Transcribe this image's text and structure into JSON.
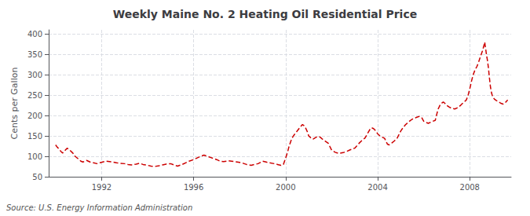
{
  "chart_data": {
    "type": "line",
    "title": "Weekly Maine No. 2 Heating Oil Residential Price",
    "ylabel": "Cents per Gallon",
    "annotations": [
      "Source: U.S. Energy Information Administration"
    ],
    "color": "#CC0000",
    "line_style": "dashed",
    "grid": true,
    "xlim": [
      1989.7,
      2009.8
    ],
    "xticks": [
      1992,
      1996,
      2000,
      2004,
      2008
    ],
    "ylim": [
      50,
      410
    ],
    "yticks": [
      50,
      100,
      150,
      200,
      250,
      300,
      350,
      400
    ],
    "x": [
      1990.0,
      1990.08,
      1990.15,
      1990.23,
      1990.31,
      1990.5,
      1990.62,
      1990.75,
      1990.85,
      1991.0,
      1991.1,
      1991.19,
      1991.35,
      1991.5,
      1991.65,
      1991.8,
      1991.92,
      1992.05,
      1992.2,
      1992.35,
      1992.5,
      1992.65,
      1992.8,
      1993.0,
      1993.15,
      1993.3,
      1993.5,
      1993.65,
      1993.8,
      1994.0,
      1994.15,
      1994.3,
      1994.5,
      1994.65,
      1994.8,
      1995.0,
      1995.15,
      1995.3,
      1995.5,
      1995.65,
      1995.8,
      1996.0,
      1996.15,
      1996.3,
      1996.45,
      1996.6,
      1996.75,
      1997.0,
      1997.15,
      1997.3,
      1997.5,
      1997.65,
      1997.8,
      1998.0,
      1998.15,
      1998.3,
      1998.5,
      1998.65,
      1998.8,
      1999.0,
      1999.15,
      1999.3,
      1999.5,
      1999.65,
      1999.8,
      1999.9,
      2000.0,
      2000.08,
      2000.15,
      2000.23,
      2000.31,
      2000.4,
      2000.5,
      2000.58,
      2000.65,
      2000.73,
      2000.8,
      2000.88,
      2000.96,
      2001.0,
      2001.1,
      2001.19,
      2001.3,
      2001.4,
      2001.5,
      2001.6,
      2001.7,
      2001.85,
      2002.0,
      2002.15,
      2002.3,
      2002.5,
      2002.65,
      2002.8,
      2003.0,
      2003.1,
      2003.19,
      2003.3,
      2003.45,
      2003.58,
      2003.65,
      2003.73,
      2003.82,
      2003.92,
      2004.0,
      2004.1,
      2004.2,
      2004.3,
      2004.42,
      2004.5,
      2004.62,
      2004.73,
      2004.85,
      2005.0,
      2005.1,
      2005.2,
      2005.3,
      2005.4,
      2005.5,
      2005.6,
      2005.7,
      2005.82,
      2005.92,
      2006.0,
      2006.1,
      2006.2,
      2006.35,
      2006.5,
      2006.62,
      2006.73,
      2006.85,
      2006.92,
      2007.0,
      2007.1,
      2007.2,
      2007.35,
      2007.5,
      2007.62,
      2007.73,
      2007.85,
      2007.92,
      2008.0,
      2008.08,
      2008.15,
      2008.23,
      2008.31,
      2008.38,
      2008.44,
      2008.5,
      2008.55,
      2008.6,
      2008.63,
      2008.65,
      2008.67,
      2008.7,
      2008.73,
      2008.77,
      2008.81,
      2008.85,
      2008.9,
      2008.95,
      2009.0,
      2009.08,
      2009.15,
      2009.25,
      2009.35,
      2009.45,
      2009.55,
      2009.65
    ],
    "values": [
      128,
      122,
      118,
      112,
      108,
      120,
      115,
      108,
      100,
      93,
      88,
      86,
      90,
      86,
      84,
      82,
      84,
      86,
      88,
      87,
      86,
      84,
      83,
      82,
      80,
      79,
      81,
      83,
      80,
      78,
      76,
      75,
      77,
      79,
      81,
      82,
      79,
      76,
      80,
      84,
      88,
      92,
      96,
      100,
      103,
      100,
      97,
      92,
      88,
      87,
      89,
      88,
      87,
      85,
      83,
      80,
      78,
      80,
      82,
      88,
      86,
      84,
      82,
      80,
      78,
      80,
      96,
      110,
      125,
      138,
      148,
      155,
      162,
      168,
      173,
      178,
      175,
      168,
      158,
      150,
      145,
      142,
      146,
      149,
      147,
      142,
      138,
      132,
      115,
      110,
      107,
      109,
      112,
      116,
      120,
      126,
      132,
      138,
      145,
      158,
      165,
      170,
      168,
      162,
      155,
      150,
      147,
      144,
      130,
      128,
      133,
      138,
      145,
      162,
      170,
      177,
      182,
      187,
      191,
      193,
      196,
      198,
      194,
      186,
      183,
      181,
      185,
      188,
      215,
      228,
      233,
      230,
      225,
      221,
      218,
      216,
      220,
      226,
      232,
      238,
      248,
      265,
      285,
      300,
      312,
      320,
      330,
      340,
      350,
      358,
      368,
      375,
      380,
      372,
      360,
      348,
      335,
      318,
      295,
      270,
      255,
      245,
      240,
      237,
      234,
      230,
      228,
      232,
      238
    ]
  }
}
